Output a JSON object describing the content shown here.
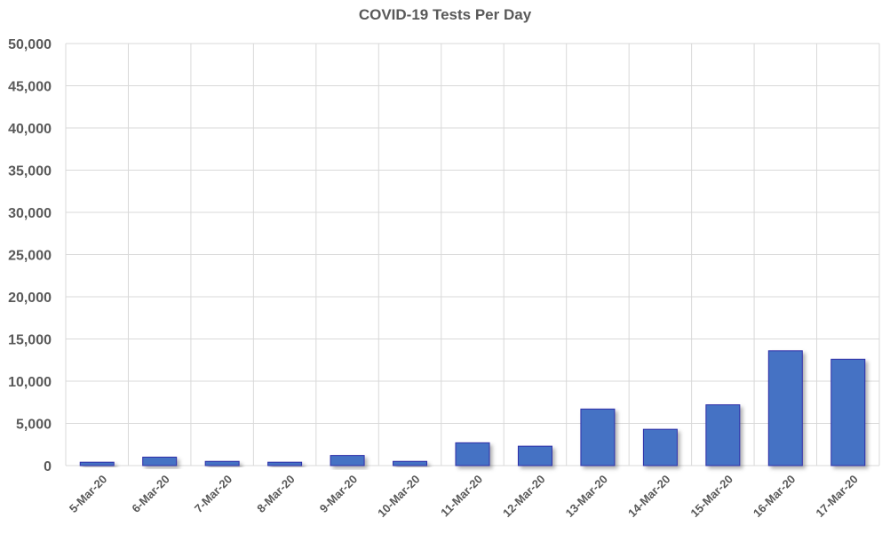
{
  "chart_data": {
    "type": "bar",
    "title": "COVID-19 Tests Per Day",
    "xlabel": "",
    "ylabel": "",
    "categories": [
      "5-Mar-20",
      "6-Mar-20",
      "7-Mar-20",
      "8-Mar-20",
      "9-Mar-20",
      "10-Mar-20",
      "11-Mar-20",
      "12-Mar-20",
      "13-Mar-20",
      "14-Mar-20",
      "15-Mar-20",
      "16-Mar-20",
      "17-Mar-20"
    ],
    "values": [
      400,
      1000,
      500,
      400,
      1200,
      500,
      2700,
      2300,
      6700,
      4300,
      7200,
      13600,
      12600
    ],
    "ylim": [
      0,
      50000
    ],
    "yticks": [
      0,
      5000,
      10000,
      15000,
      20000,
      25000,
      30000,
      35000,
      40000,
      45000,
      50000
    ],
    "ytick_labels": [
      "0",
      "5,000",
      "10,000",
      "15,000",
      "20,000",
      "25,000",
      "30,000",
      "35,000",
      "40,000",
      "45,000",
      "50,000"
    ],
    "grid": "both",
    "legend": "none",
    "bar_color": "#4472c4",
    "bar_edge_color": "#2f2fa8"
  }
}
